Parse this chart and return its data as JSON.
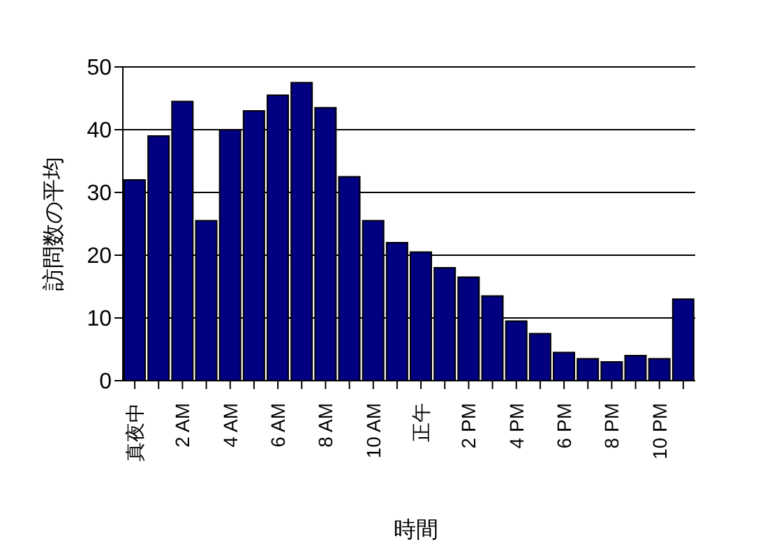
{
  "chart_data": {
    "type": "bar",
    "xlabel": "時間",
    "ylabel": "訪問数の平均",
    "categories": [
      "真夜中",
      null,
      "2 AM",
      null,
      "4 AM",
      null,
      "6 AM",
      null,
      "8 AM",
      null,
      "10 AM",
      null,
      "正午",
      null,
      "2 PM",
      null,
      "4 PM",
      null,
      "6 PM",
      null,
      "8 PM",
      null,
      "10 PM",
      null
    ],
    "values": [
      32,
      39,
      44.5,
      25.5,
      40,
      43,
      45.5,
      47.5,
      43.5,
      32.5,
      25.5,
      22,
      20.5,
      18,
      16.5,
      13.5,
      9.5,
      7.5,
      4.5,
      3.5,
      3,
      4,
      3.5,
      13
    ],
    "color": "#000080",
    "ylim": [
      0,
      50
    ],
    "yticks": [
      0,
      10,
      20,
      30,
      40,
      50
    ],
    "grid": "y"
  }
}
